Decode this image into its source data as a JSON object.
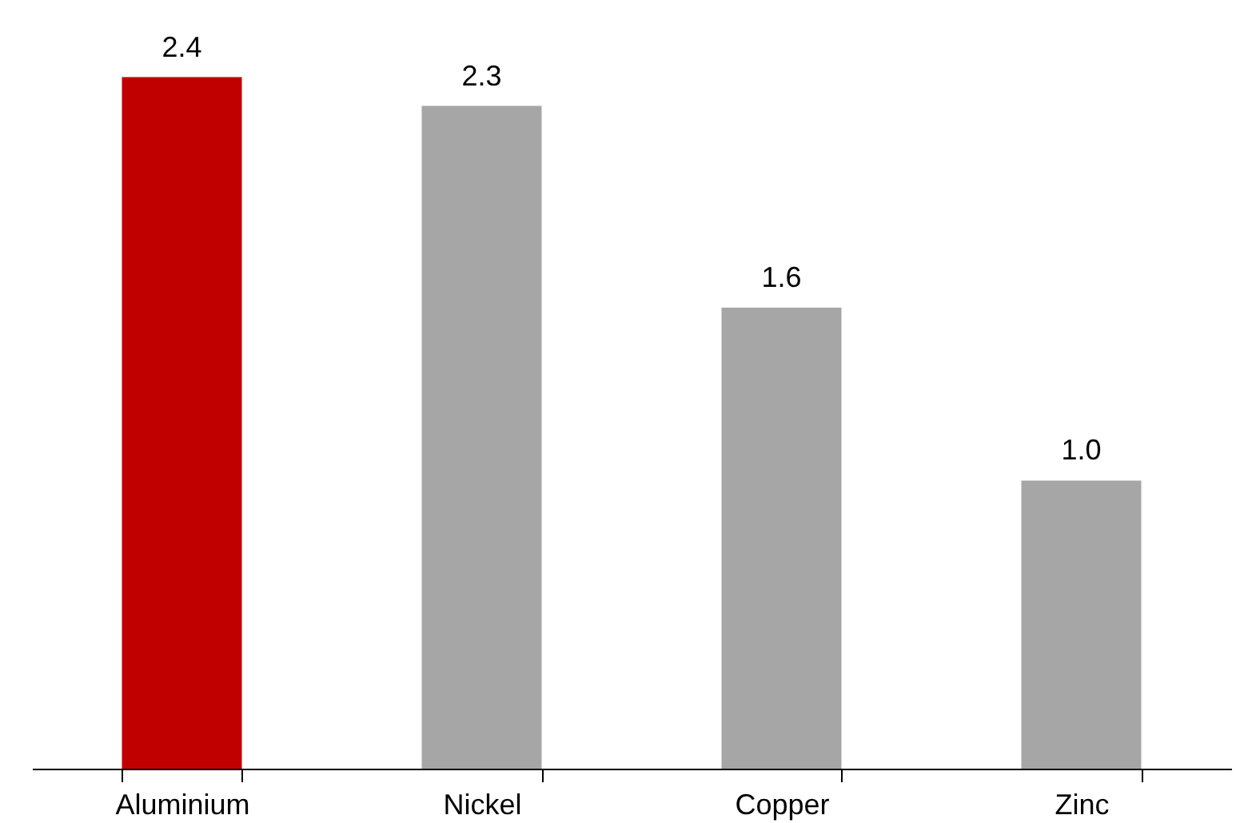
{
  "chart_data": {
    "type": "bar",
    "categories": [
      "Aluminium",
      "Nickel",
      "Copper",
      "Zinc"
    ],
    "values": [
      2.4,
      2.3,
      1.6,
      1.0
    ],
    "colors": [
      "#c00000",
      "#a6a6a6",
      "#a6a6a6",
      "#a6a6a6"
    ],
    "value_labels": [
      "2.4",
      "2.3",
      "1.6",
      "1.0"
    ]
  }
}
